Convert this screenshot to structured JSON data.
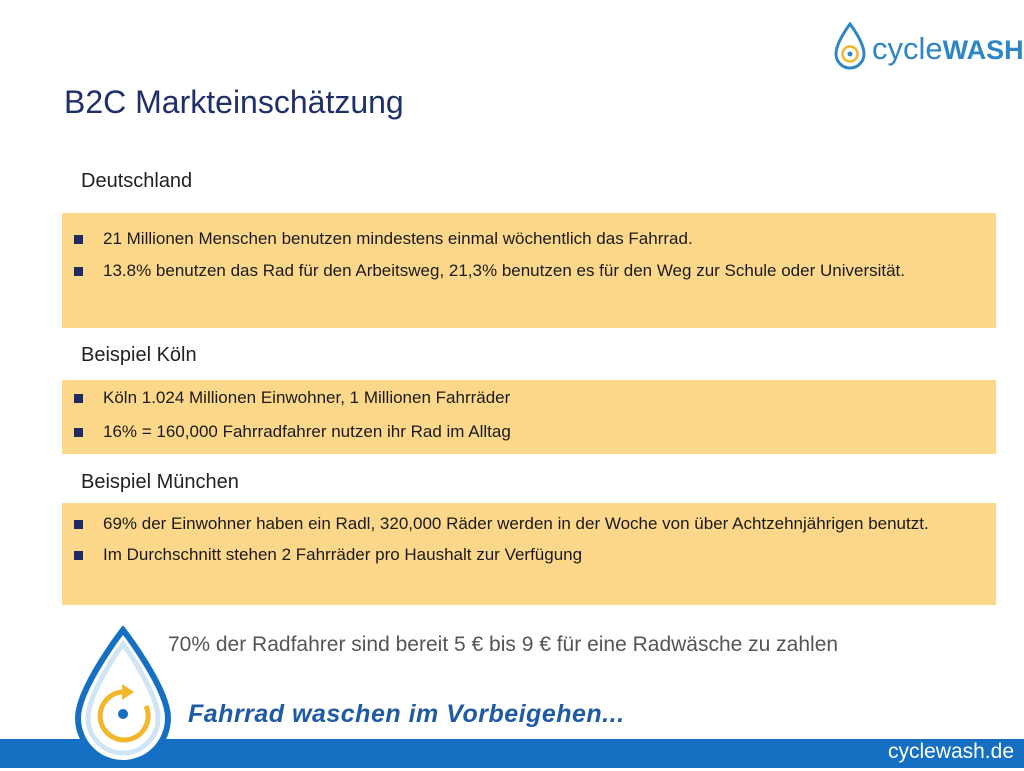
{
  "logo": {
    "cycle": "cycle",
    "wash": "WASH",
    "icon": "water-drop-logo-icon"
  },
  "title": "B2C Markteinschätzung",
  "sections": [
    {
      "heading": "Deutschland",
      "bullets": [
        "21 Millionen Menschen benutzen mindestens einmal wöchentlich das Fahrrad.",
        "13.8% benutzen das Rad für den Arbeitsweg, 21,3% benutzen es für den Weg zur Schule oder Universität."
      ]
    },
    {
      "heading": "Beispiel Köln",
      "bullets": [
        "Köln 1.024 Millionen Einwohner, 1 Millionen Fahrräder",
        "16% = 160,000 Fahrradfahrer nutzen ihr Rad im Alltag"
      ]
    },
    {
      "heading": "Beispiel München",
      "bullets": [
        "69% der Einwohner haben ein Radl, 320,000 Räder werden in der Woche von über Achtzehnjährigen benutzt.",
        "Im Durchschnitt stehen 2 Fahrräder pro Haushalt zur Verfügung"
      ]
    }
  ],
  "tagline": "70% der Radfahrer sind bereit 5 € bis 9 € für eine Radwäsche zu zahlen",
  "slogan": "Fahrrad waschen im Vorbeigehen...",
  "footer_url": "cyclewash.de",
  "colors": {
    "title": "#1f2f6b",
    "box": "#fdd88a",
    "bullet": "#1e2a64",
    "brand_blue": "#1570c4",
    "brand_yellow": "#f2b72a"
  }
}
